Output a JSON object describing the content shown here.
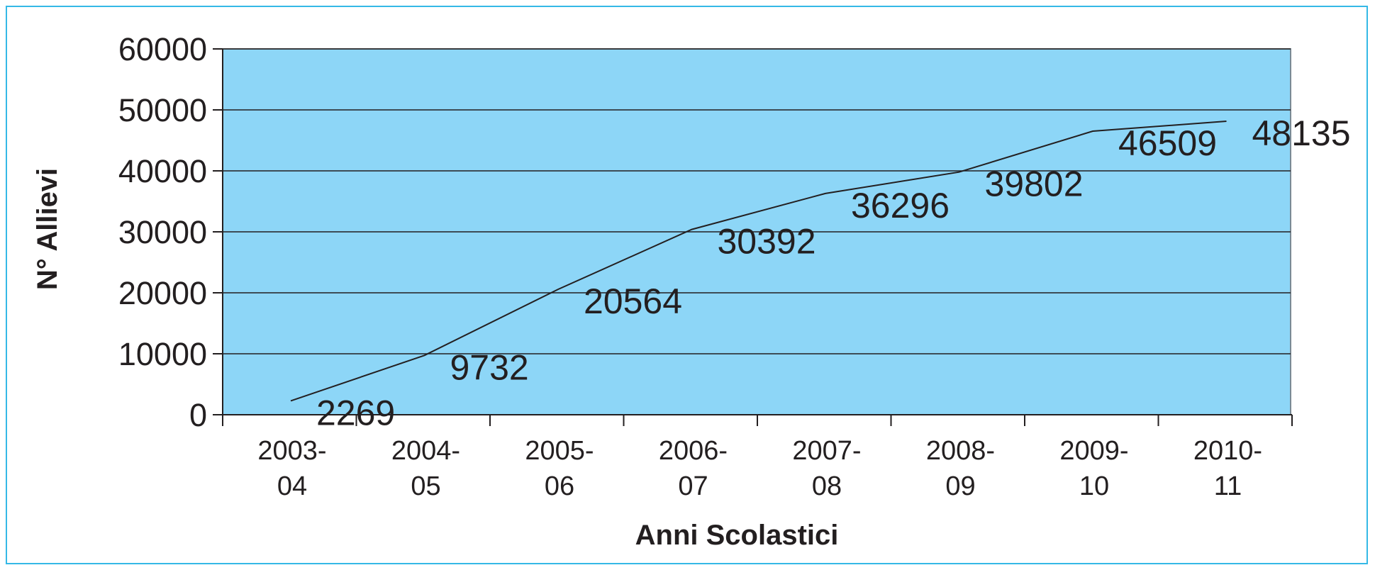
{
  "colors": {
    "frame": "#35b9e6",
    "plot_background": "#8dd6f7",
    "line": "#231f20",
    "text": "#231f20"
  },
  "chart_data": {
    "type": "line",
    "categories": [
      [
        "2003-",
        "04"
      ],
      [
        "2004-",
        "05"
      ],
      [
        "2005-",
        "06"
      ],
      [
        "2006-",
        "07"
      ],
      [
        "2007-",
        "08"
      ],
      [
        "2008-",
        "09"
      ],
      [
        "2009-",
        "10"
      ],
      [
        "2010-",
        "11"
      ]
    ],
    "series": [
      {
        "values": [
          2269,
          9732,
          20564,
          30392,
          36296,
          39802,
          46509,
          48135
        ],
        "labels": [
          "2269",
          "9732",
          "20564",
          "30392",
          "36296",
          "39802",
          "46509",
          "48135"
        ]
      }
    ],
    "title": "",
    "xlabel": "Anni Scolastici",
    "ylabel": "N° Allievi",
    "ylim": [
      0,
      60000
    ],
    "yticks": [
      0,
      10000,
      20000,
      30000,
      40000,
      50000,
      60000
    ],
    "ytick_labels": [
      "0",
      "10000",
      "20000",
      "30000",
      "40000",
      "50000",
      "60000"
    ],
    "grid": true,
    "legend": "none"
  }
}
